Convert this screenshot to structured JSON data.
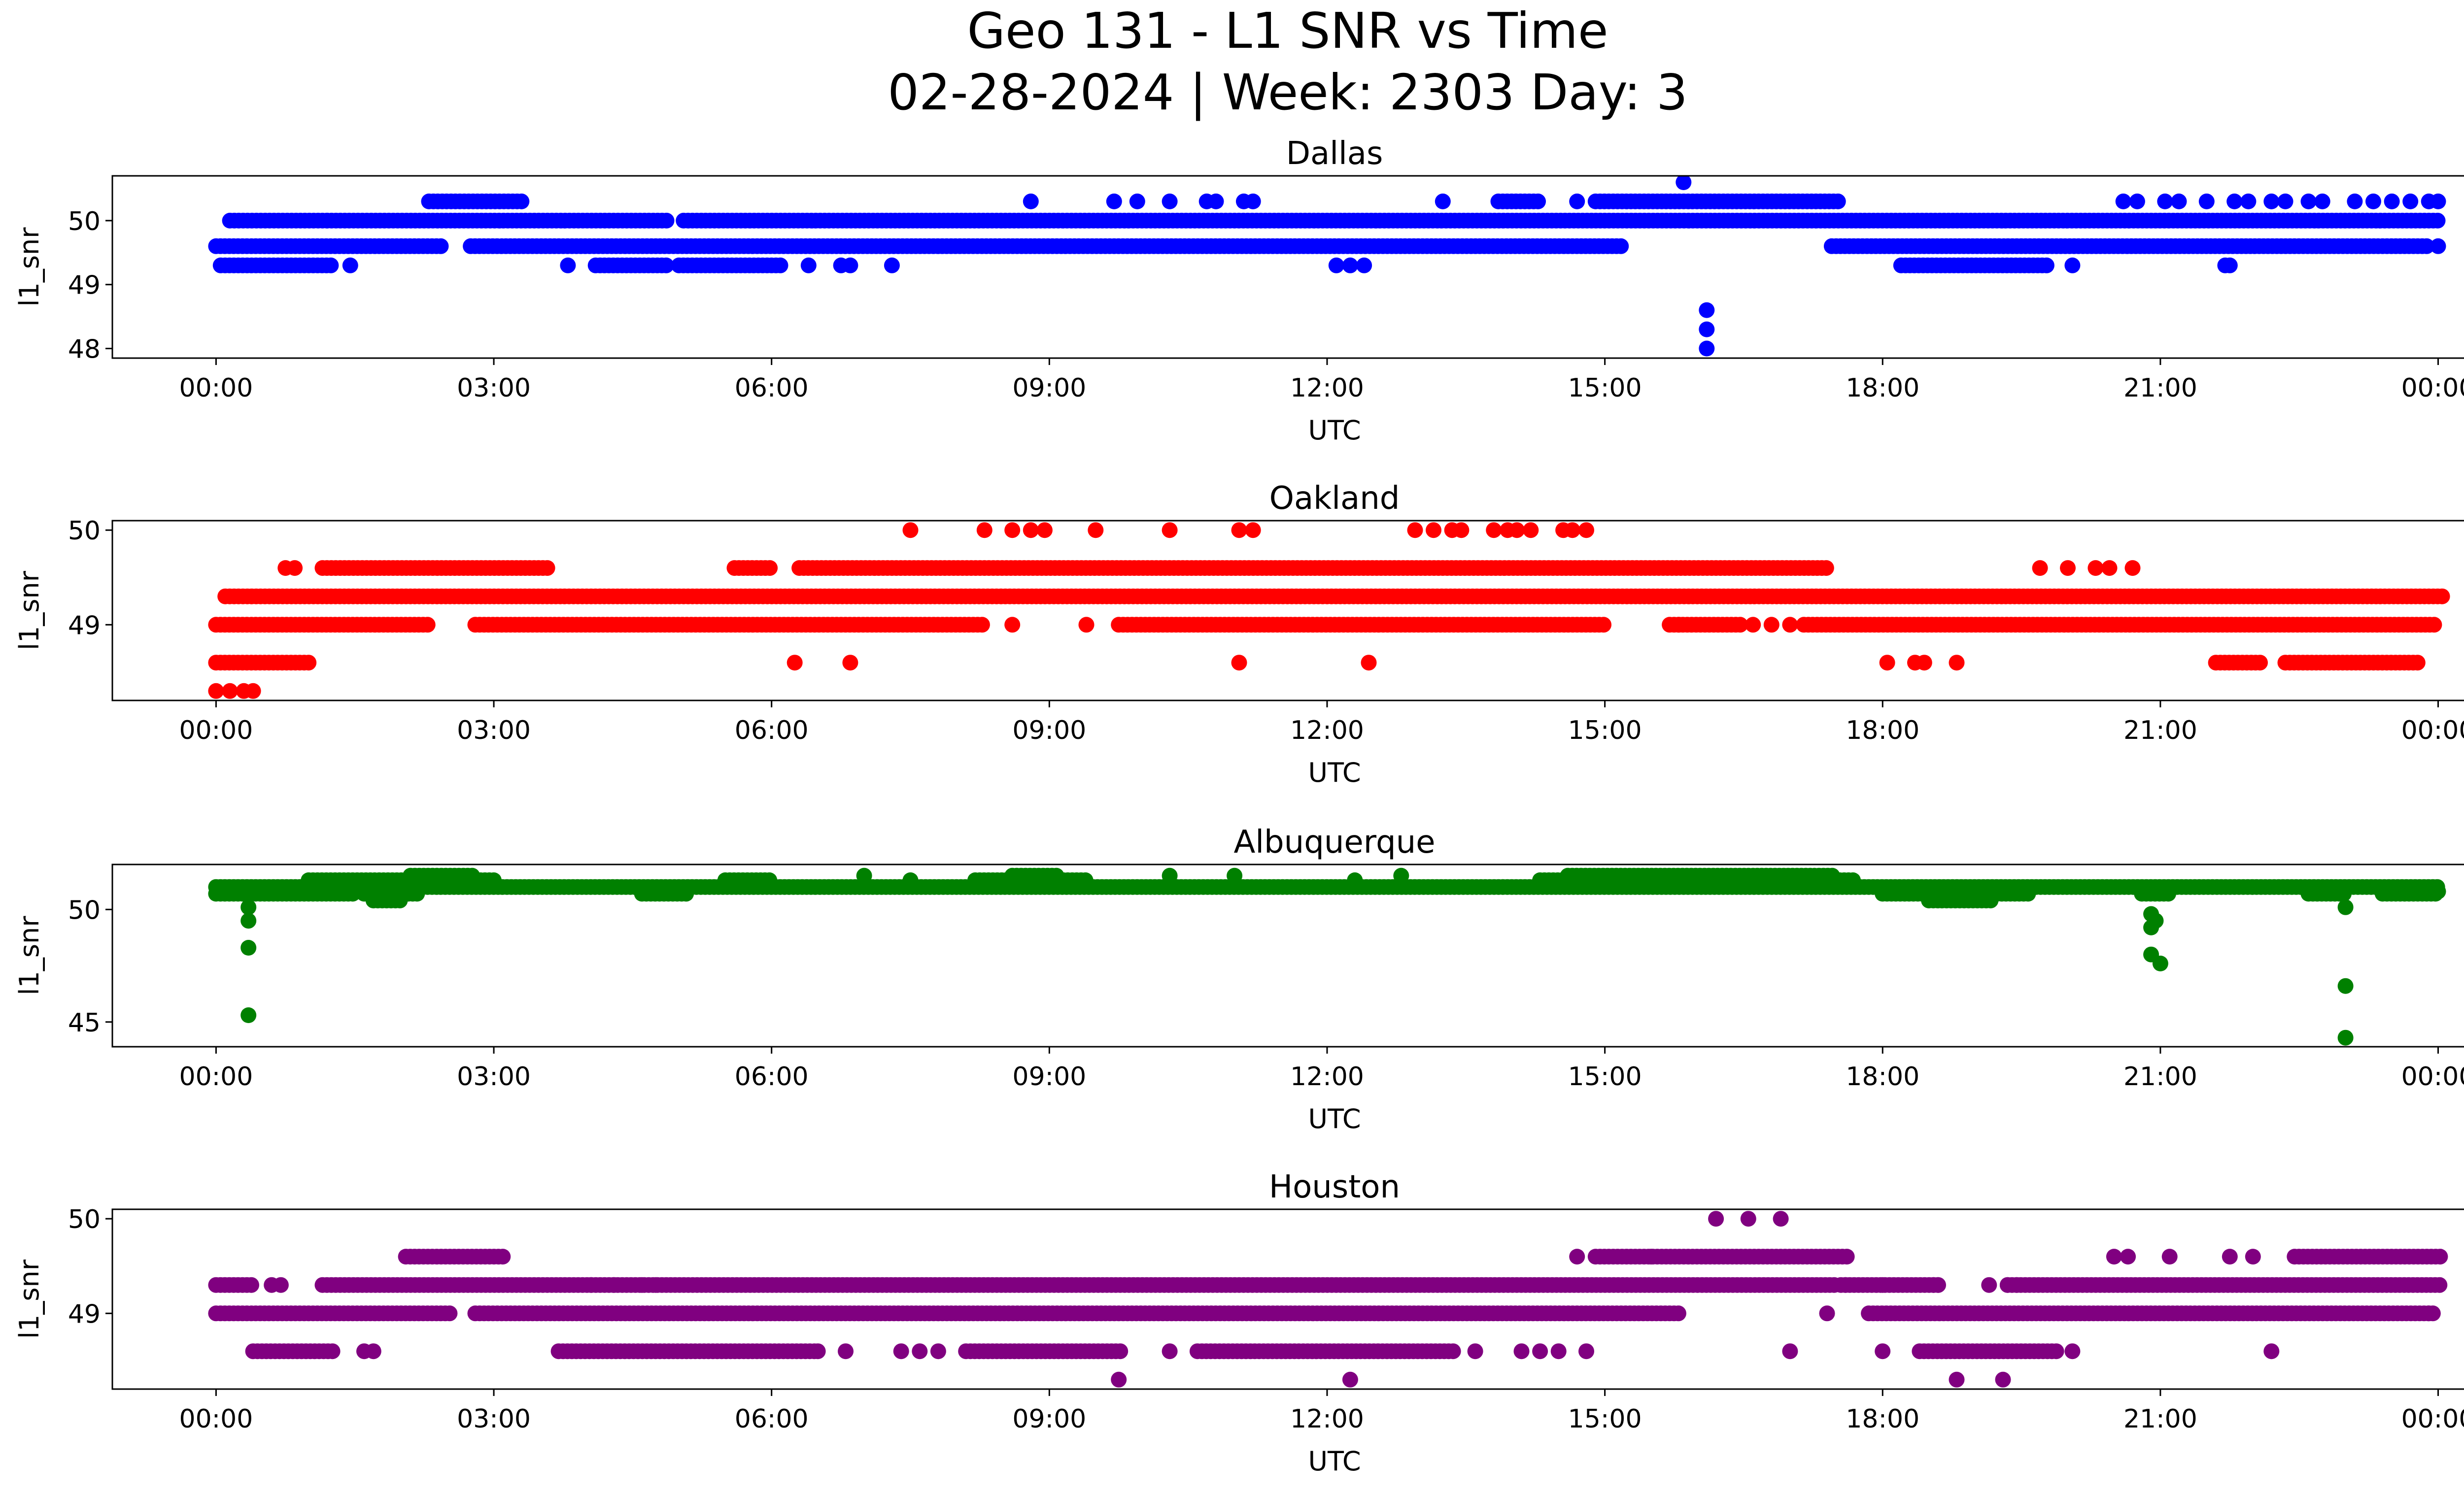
{
  "title_line1": "Geo 131 - L1 SNR vs Time",
  "title_line2": "02-28-2024 | Week: 2303 Day: 3",
  "chart_data": [
    {
      "type": "scatter",
      "title": "Dallas",
      "xlabel": "UTC",
      "ylabel": "l1_snr",
      "color": "#0000ff",
      "xlim_hours": [
        -1.12,
        25.28
      ],
      "ylim": [
        47.85,
        50.7
      ],
      "xticks": [
        "00:00",
        "03:00",
        "06:00",
        "09:00",
        "12:00",
        "15:00",
        "18:00",
        "21:00",
        "00:00"
      ],
      "yticks": [
        48,
        49,
        50
      ],
      "bands": [
        {
          "y": 50.0,
          "ranges": [
            [
              0.15,
              1.2
            ],
            [
              1.2,
              4.9
            ],
            [
              5.05,
              24.0
            ]
          ]
        },
        {
          "y": 49.6,
          "ranges": [
            [
              0.0,
              2.45
            ],
            [
              2.75,
              15.2
            ],
            [
              17.45,
              23.9
            ]
          ]
        },
        {
          "y": 49.3,
          "ranges": [
            [
              0.05,
              1.25
            ],
            [
              4.1,
              4.9
            ],
            [
              5.0,
              6.1
            ],
            [
              18.2,
              19.8
            ]
          ]
        },
        {
          "y": 50.3,
          "ranges": [
            [
              2.3,
              3.3
            ],
            [
              13.85,
              14.3
            ],
            [
              14.9,
              17.55
            ]
          ]
        }
      ],
      "points": [
        [
          1.45,
          49.3
        ],
        [
          3.8,
          49.3
        ],
        [
          6.4,
          49.3
        ],
        [
          6.75,
          49.3
        ],
        [
          6.85,
          49.3
        ],
        [
          7.3,
          49.3
        ],
        [
          12.1,
          49.3
        ],
        [
          12.25,
          49.3
        ],
        [
          12.4,
          49.3
        ],
        [
          21.7,
          49.3
        ],
        [
          21.75,
          49.3
        ],
        [
          20.05,
          49.3
        ],
        [
          8.8,
          50.3
        ],
        [
          9.7,
          50.3
        ],
        [
          9.95,
          50.3
        ],
        [
          10.3,
          50.3
        ],
        [
          10.7,
          50.3
        ],
        [
          10.8,
          50.3
        ],
        [
          11.1,
          50.3
        ],
        [
          11.2,
          50.3
        ],
        [
          13.25,
          50.3
        ],
        [
          14.7,
          50.3
        ],
        [
          20.6,
          50.3
        ],
        [
          20.75,
          50.3
        ],
        [
          21.05,
          50.3
        ],
        [
          21.2,
          50.3
        ],
        [
          21.5,
          50.3
        ],
        [
          21.8,
          50.3
        ],
        [
          21.95,
          50.3
        ],
        [
          22.2,
          50.3
        ],
        [
          22.35,
          50.3
        ],
        [
          22.6,
          50.3
        ],
        [
          22.75,
          50.3
        ],
        [
          23.1,
          50.3
        ],
        [
          23.3,
          50.3
        ],
        [
          23.5,
          50.3
        ],
        [
          23.7,
          50.3
        ],
        [
          23.9,
          50.3
        ],
        [
          24.0,
          50.3
        ],
        [
          15.85,
          50.6
        ],
        [
          16.1,
          48.6
        ],
        [
          16.1,
          48.3
        ],
        [
          16.1,
          48.0
        ],
        [
          24.0,
          49.6
        ]
      ]
    },
    {
      "type": "scatter",
      "title": "Oakland",
      "xlabel": "UTC",
      "ylabel": "l1_snr",
      "color": "#ff0000",
      "xlim_hours": [
        -1.12,
        25.28
      ],
      "ylim": [
        48.2,
        50.1
      ],
      "xticks": [
        "00:00",
        "03:00",
        "06:00",
        "09:00",
        "12:00",
        "15:00",
        "18:00",
        "21:00",
        "00:00"
      ],
      "yticks": [
        49,
        50
      ],
      "bands": [
        {
          "y": 49.3,
          "ranges": [
            [
              0.1,
              24.05
            ]
          ]
        },
        {
          "y": 49.0,
          "ranges": [
            [
              0.0,
              2.3
            ],
            [
              2.8,
              8.3
            ],
            [
              9.75,
              15.0
            ],
            [
              15.7,
              16.5
            ],
            [
              17.15,
              24.0
            ]
          ]
        },
        {
          "y": 49.6,
          "ranges": [
            [
              1.15,
              3.6
            ],
            [
              5.6,
              6.0
            ],
            [
              6.3,
              17.4
            ]
          ]
        },
        {
          "y": 48.6,
          "ranges": [
            [
              0.0,
              1.0
            ],
            [
              21.6,
              22.1
            ],
            [
              22.35,
              23.8
            ]
          ]
        }
      ],
      "points": [
        [
          0.75,
          49.6
        ],
        [
          0.85,
          49.6
        ],
        [
          19.7,
          49.6
        ],
        [
          20.0,
          49.6
        ],
        [
          20.3,
          49.6
        ],
        [
          20.45,
          49.6
        ],
        [
          20.7,
          49.6
        ],
        [
          0.0,
          48.3
        ],
        [
          0.15,
          48.3
        ],
        [
          0.3,
          48.3
        ],
        [
          0.4,
          48.3
        ],
        [
          6.25,
          48.6
        ],
        [
          6.85,
          48.6
        ],
        [
          11.05,
          48.6
        ],
        [
          12.45,
          48.6
        ],
        [
          18.05,
          48.6
        ],
        [
          18.35,
          48.6
        ],
        [
          18.45,
          48.6
        ],
        [
          18.8,
          48.6
        ],
        [
          8.6,
          49.0
        ],
        [
          9.4,
          49.0
        ],
        [
          15.8,
          49.0
        ],
        [
          16.6,
          49.0
        ],
        [
          16.8,
          49.0
        ],
        [
          17.0,
          49.0
        ],
        [
          7.5,
          50.0
        ],
        [
          8.3,
          50.0
        ],
        [
          8.6,
          50.0
        ],
        [
          8.8,
          50.0
        ],
        [
          8.95,
          50.0
        ],
        [
          9.5,
          50.0
        ],
        [
          10.3,
          50.0
        ],
        [
          11.05,
          50.0
        ],
        [
          11.2,
          50.0
        ],
        [
          12.95,
          50.0
        ],
        [
          13.15,
          50.0
        ],
        [
          13.35,
          50.0
        ],
        [
          13.45,
          50.0
        ],
        [
          13.8,
          50.0
        ],
        [
          13.95,
          50.0
        ],
        [
          14.05,
          50.0
        ],
        [
          14.2,
          50.0
        ],
        [
          14.55,
          50.0
        ],
        [
          14.65,
          50.0
        ],
        [
          14.8,
          50.0
        ]
      ]
    },
    {
      "type": "scatter",
      "title": "Albuquerque",
      "xlabel": "UTC",
      "ylabel": "l1_snr",
      "color": "#008000",
      "xlim_hours": [
        -1.12,
        25.28
      ],
      "ylim": [
        43.9,
        52.0
      ],
      "xticks": [
        "00:00",
        "03:00",
        "06:00",
        "09:00",
        "12:00",
        "15:00",
        "18:00",
        "21:00",
        "00:00"
      ],
      "yticks": [
        45,
        50
      ],
      "bands": [
        {
          "y": 51.0,
          "ranges": [
            [
              0.0,
              24.0
            ]
          ]
        },
        {
          "y": 50.7,
          "ranges": [
            [
              0.0,
              1.5
            ],
            [
              1.6,
              2.2
            ],
            [
              4.6,
              5.1
            ],
            [
              18.0,
              19.6
            ],
            [
              20.8,
              21.1
            ],
            [
              22.6,
              23.0
            ],
            [
              23.4,
              24.0
            ]
          ]
        },
        {
          "y": 51.3,
          "ranges": [
            [
              1.0,
              3.0
            ],
            [
              5.5,
              6.0
            ],
            [
              8.2,
              9.4
            ],
            [
              14.3,
              17.7
            ]
          ]
        },
        {
          "y": 51.5,
          "ranges": [
            [
              2.1,
              2.8
            ],
            [
              8.6,
              9.1
            ],
            [
              14.6,
              17.5
            ]
          ]
        },
        {
          "y": 50.4,
          "ranges": [
            [
              1.7,
              2.0
            ],
            [
              18.5,
              19.2
            ]
          ]
        }
      ],
      "points": [
        [
          0.35,
          50.1
        ],
        [
          0.35,
          49.5
        ],
        [
          0.35,
          48.3
        ],
        [
          0.35,
          45.3
        ],
        [
          20.9,
          49.8
        ],
        [
          20.9,
          49.2
        ],
        [
          20.9,
          48.0
        ],
        [
          21.0,
          47.6
        ],
        [
          20.95,
          49.5
        ],
        [
          23.0,
          50.1
        ],
        [
          23.0,
          46.6
        ],
        [
          23.0,
          44.3
        ],
        [
          24.0,
          50.8
        ],
        [
          7.0,
          51.5
        ],
        [
          10.3,
          51.5
        ],
        [
          11.0,
          51.5
        ],
        [
          12.8,
          51.5
        ],
        [
          7.5,
          51.3
        ],
        [
          12.3,
          51.3
        ]
      ]
    },
    {
      "type": "scatter",
      "title": "Houston",
      "xlabel": "UTC",
      "ylabel": "l1_snr",
      "color": "#800080",
      "xlim_hours": [
        -1.12,
        25.28
      ],
      "ylim": [
        48.2,
        50.1
      ],
      "xticks": [
        "00:00",
        "03:00",
        "06:00",
        "09:00",
        "12:00",
        "15:00",
        "18:00",
        "21:00",
        "00:00"
      ],
      "yticks": [
        49,
        50
      ],
      "bands": [
        {
          "y": 49.3,
          "ranges": [
            [
              0.0,
              0.4
            ],
            [
              1.15,
              17.5
            ],
            [
              17.55,
              18.55
            ],
            [
              18.55,
              18.6
            ],
            [
              19.35,
              24.05
            ]
          ]
        },
        {
          "y": 49.0,
          "ranges": [
            [
              0.0,
              2.55
            ],
            [
              2.8,
              15.8
            ],
            [
              17.85,
              23.95
            ]
          ]
        },
        {
          "y": 48.6,
          "ranges": [
            [
              0.4,
              1.3
            ],
            [
              3.7,
              6.5
            ],
            [
              8.1,
              9.8
            ],
            [
              10.6,
              13.4
            ],
            [
              18.4,
              19.9
            ]
          ]
        },
        {
          "y": 49.6,
          "ranges": [
            [
              2.05,
              3.1
            ],
            [
              14.9,
              17.65
            ],
            [
              22.45,
              24.05
            ]
          ]
        }
      ],
      "points": [
        [
          0.6,
          49.3
        ],
        [
          0.7,
          49.3
        ],
        [
          4.05,
          49.3
        ],
        [
          4.3,
          49.3
        ],
        [
          4.6,
          49.3
        ],
        [
          4.75,
          49.3
        ],
        [
          17.6,
          49.3
        ],
        [
          18.0,
          49.3
        ],
        [
          18.6,
          49.3
        ],
        [
          19.15,
          49.3
        ],
        [
          19.35,
          49.3
        ],
        [
          19.45,
          49.3
        ],
        [
          1.6,
          48.6
        ],
        [
          1.7,
          48.6
        ],
        [
          6.5,
          48.6
        ],
        [
          6.8,
          48.6
        ],
        [
          7.4,
          48.6
        ],
        [
          7.6,
          48.6
        ],
        [
          7.8,
          48.6
        ],
        [
          10.3,
          48.6
        ],
        [
          13.6,
          48.6
        ],
        [
          14.1,
          48.6
        ],
        [
          14.3,
          48.6
        ],
        [
          14.5,
          48.6
        ],
        [
          14.8,
          48.6
        ],
        [
          17.0,
          48.6
        ],
        [
          18.0,
          48.6
        ],
        [
          20.05,
          48.6
        ],
        [
          22.2,
          48.6
        ],
        [
          14.7,
          49.6
        ],
        [
          15.5,
          49.6
        ],
        [
          20.5,
          49.6
        ],
        [
          20.65,
          49.6
        ],
        [
          21.1,
          49.6
        ],
        [
          21.75,
          49.6
        ],
        [
          22.0,
          49.6
        ],
        [
          16.2,
          50.0
        ],
        [
          16.55,
          50.0
        ],
        [
          16.9,
          50.0
        ],
        [
          9.75,
          48.3
        ],
        [
          12.25,
          48.3
        ],
        [
          18.8,
          48.3
        ],
        [
          19.3,
          48.3
        ],
        [
          17.4,
          49.0
        ],
        [
          23.9,
          49.0
        ]
      ]
    }
  ]
}
